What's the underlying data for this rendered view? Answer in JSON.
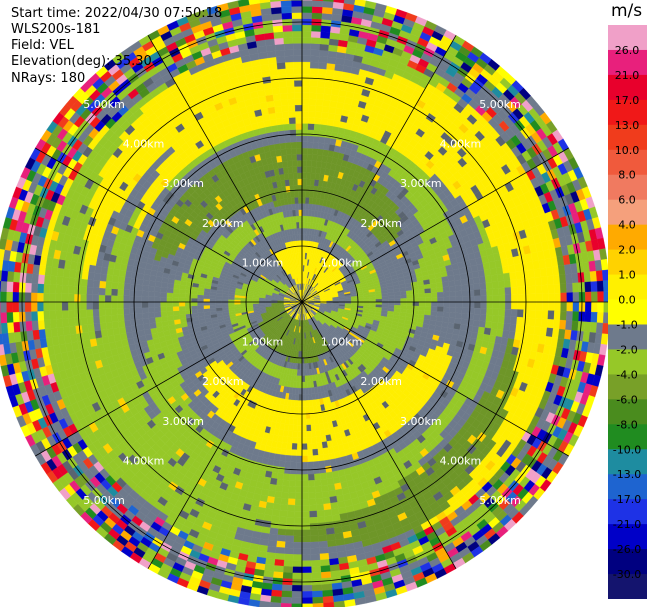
{
  "header": {
    "start_time": "Start time: 2022/04/30 07:50:18",
    "instrument": "WLS200s-181",
    "field": "Field: VEL",
    "elevation": "Elevation(deg): 35.30",
    "nrays": "NRays: 180"
  },
  "colorbar": {
    "unit": "m/s",
    "ticks": [
      "26.0",
      "21.0",
      "17.0",
      "13.0",
      "10.0",
      "8.0",
      "6.0",
      "4.0",
      "2.0",
      "1.0",
      "0.0",
      "-1.0",
      "-2.0",
      "-4.0",
      "-6.0",
      "-8.0",
      "-10.0",
      "-13.0",
      "-17.0",
      "-21.0",
      "-26.0",
      "-30.0"
    ],
    "colors": [
      "#f0a0c8",
      "#e8207c",
      "#e8002c",
      "#f01818",
      "#f03c1c",
      "#f05a3c",
      "#f07a60",
      "#f5a07c",
      "#ffaa00",
      "#ffd200",
      "#fff000",
      "#ffff00",
      "#6e7a8c",
      "#96c828",
      "#78a028",
      "#4a8c1e",
      "#208c20",
      "#1e8ca0",
      "#1e64d0",
      "#1e32e6",
      "#0000c8",
      "#000080",
      "#14146e"
    ]
  },
  "chart_data": {
    "type": "heatmap",
    "projection": "polar-ppi",
    "field": "VEL",
    "units": "m/s",
    "nrays": 180,
    "elevation_deg": 35.3,
    "range_rings_km": [
      1.0,
      2.0,
      3.0,
      4.0,
      5.0
    ],
    "ring_labels": [
      "1.00km",
      "2.00km",
      "3.00km",
      "4.00km",
      "5.00km"
    ],
    "spokes_deg": [
      0,
      30,
      60,
      90,
      120,
      150,
      180,
      210,
      240,
      270,
      300,
      330
    ],
    "max_range_km": 5.5,
    "color_scale": {
      "min": -30.0,
      "max": 26.0
    }
  }
}
